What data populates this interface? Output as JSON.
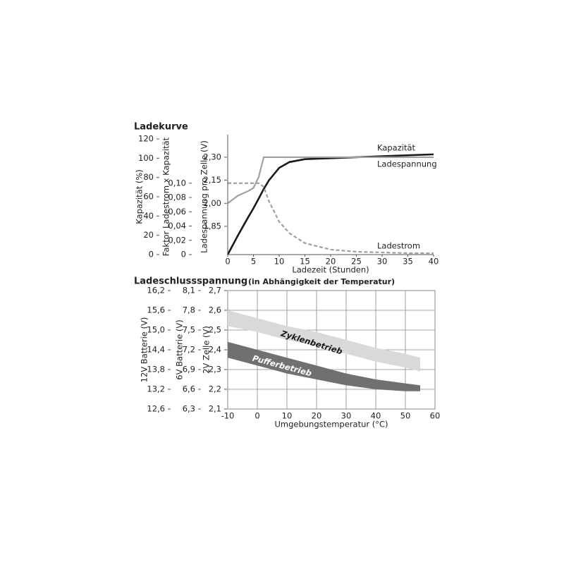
{
  "chart_data": [
    {
      "type": "line",
      "title": "Ladekurve",
      "xlabel": "Ladezeit (Stunden)",
      "x": [
        0,
        2,
        4,
        5,
        6,
        7,
        8,
        10,
        12,
        15,
        20,
        25,
        30,
        35,
        40
      ],
      "xlim": [
        0,
        40
      ],
      "xticks": [
        0,
        5,
        10,
        15,
        20,
        25,
        30,
        35,
        40
      ],
      "ylabel": "Kapazität (%)",
      "ylim": [
        0,
        120
      ],
      "yticks": [
        0,
        20,
        40,
        60,
        80,
        100,
        120
      ],
      "y2label": "Faktor Ladestrom x Kapazität",
      "y2lim": [
        0,
        0.162
      ],
      "y2ticks": [
        0,
        {
          "value": 0.02,
          "label": "0,02"
        },
        {
          "value": 0.04,
          "label": "0,04"
        },
        {
          "value": 0.06,
          "label": "0,06"
        },
        {
          "value": 0.08,
          "label": "0,08"
        },
        {
          "value": 0.1,
          "label": "0,10"
        }
      ],
      "y3label": "Ladespannung pro Zelle (V)",
      "y3lim": [
        1.666,
        2.419
      ],
      "y3ticks": [
        {
          "value": 1.85,
          "label": "1,85"
        },
        {
          "value": 2.0,
          "label": "2,00"
        },
        {
          "value": 2.15,
          "label": "2,15"
        },
        {
          "value": 2.3,
          "label": "2,30"
        }
      ],
      "grid": false,
      "series": [
        {
          "name": "Kapazität",
          "color": "#1a1a1a",
          "axis": "y",
          "dashed": false,
          "values": [
            0,
            20,
            39,
            48,
            58,
            68,
            77,
            90,
            96,
            99,
            100,
            101,
            102,
            103,
            104
          ]
        },
        {
          "name": "Ladespannung",
          "color": "#a0a0a0",
          "axis": "y3",
          "dashed": false,
          "values": [
            2.0,
            2.05,
            2.08,
            2.1,
            2.17,
            2.3,
            2.3,
            2.3,
            2.3,
            2.3,
            2.3,
            2.3,
            2.3,
            2.3,
            2.3
          ]
        },
        {
          "name": "Ladestrom",
          "color": "#a0a0a0",
          "axis": "y2",
          "dashed": true,
          "values": [
            0.1,
            0.1,
            0.1,
            0.1,
            0.1,
            0.095,
            0.075,
            0.046,
            0.03,
            0.016,
            0.007,
            0.004,
            0.003,
            0.002,
            0.002
          ]
        }
      ]
    },
    {
      "type": "band",
      "title": "Ladeschlussspannung",
      "subtitle": "(in Abhängigkeit der Temperatur)",
      "xlabel": "Umgebungstemperatur (°C)",
      "x": [
        -10,
        0,
        10,
        20,
        30,
        40,
        50,
        55
      ],
      "xlim": [
        -10,
        60
      ],
      "xticks": [
        -10,
        0,
        10,
        20,
        30,
        40,
        50,
        60
      ],
      "ylabel": "2V Zelle (V)",
      "ylim": [
        2.1,
        2.7
      ],
      "yticks": [
        {
          "value": 2.1,
          "label": "2,1"
        },
        {
          "value": 2.2,
          "label": "2,2"
        },
        {
          "value": 2.3,
          "label": "2,3"
        },
        {
          "value": 2.4,
          "label": "2,4"
        },
        {
          "value": 2.5,
          "label": "2,5"
        },
        {
          "value": 2.6,
          "label": "2,6"
        },
        {
          "value": 2.7,
          "label": "2,7"
        }
      ],
      "y2label": "6V Batterie (V)",
      "y2lim": [
        6.3,
        8.1
      ],
      "y2ticks": [
        {
          "value": 6.3,
          "label": "6,3"
        },
        {
          "value": 6.6,
          "label": "6,6"
        },
        {
          "value": 6.9,
          "label": "6,9"
        },
        {
          "value": 7.2,
          "label": "7,2"
        },
        {
          "value": 7.5,
          "label": "7,5"
        },
        {
          "value": 7.8,
          "label": "7,8"
        },
        {
          "value": 8.1,
          "label": "8,1"
        }
      ],
      "y3label": "12V Batterie (V)",
      "y3lim": [
        12.6,
        16.2
      ],
      "y3ticks": [
        {
          "value": 12.6,
          "label": "12,6"
        },
        {
          "value": 13.2,
          "label": "13,2"
        },
        {
          "value": 13.8,
          "label": "13,8"
        },
        {
          "value": 14.4,
          "label": "14,4"
        },
        {
          "value": 15.0,
          "label": "15,0"
        },
        {
          "value": 15.6,
          "label": "15,6"
        },
        {
          "value": 16.2,
          "label": "16,2"
        }
      ],
      "grid": true,
      "series": [
        {
          "name": "Zyklenbetrieb",
          "color": "#d9d9d9",
          "label_color": "#1a1a1a",
          "upper": [
            2.6,
            2.56,
            2.52,
            2.49,
            2.45,
            2.41,
            2.38,
            2.36
          ],
          "lower": [
            2.52,
            2.49,
            2.45,
            2.42,
            2.38,
            2.34,
            2.31,
            2.29
          ]
        },
        {
          "name": "Pufferbetrieb",
          "color": "#707070",
          "label_color": "#ffffff",
          "upper": [
            2.44,
            2.4,
            2.36,
            2.32,
            2.28,
            2.25,
            2.23,
            2.22
          ],
          "lower": [
            2.36,
            2.32,
            2.28,
            2.25,
            2.22,
            2.2,
            2.19,
            2.19
          ]
        }
      ]
    }
  ]
}
